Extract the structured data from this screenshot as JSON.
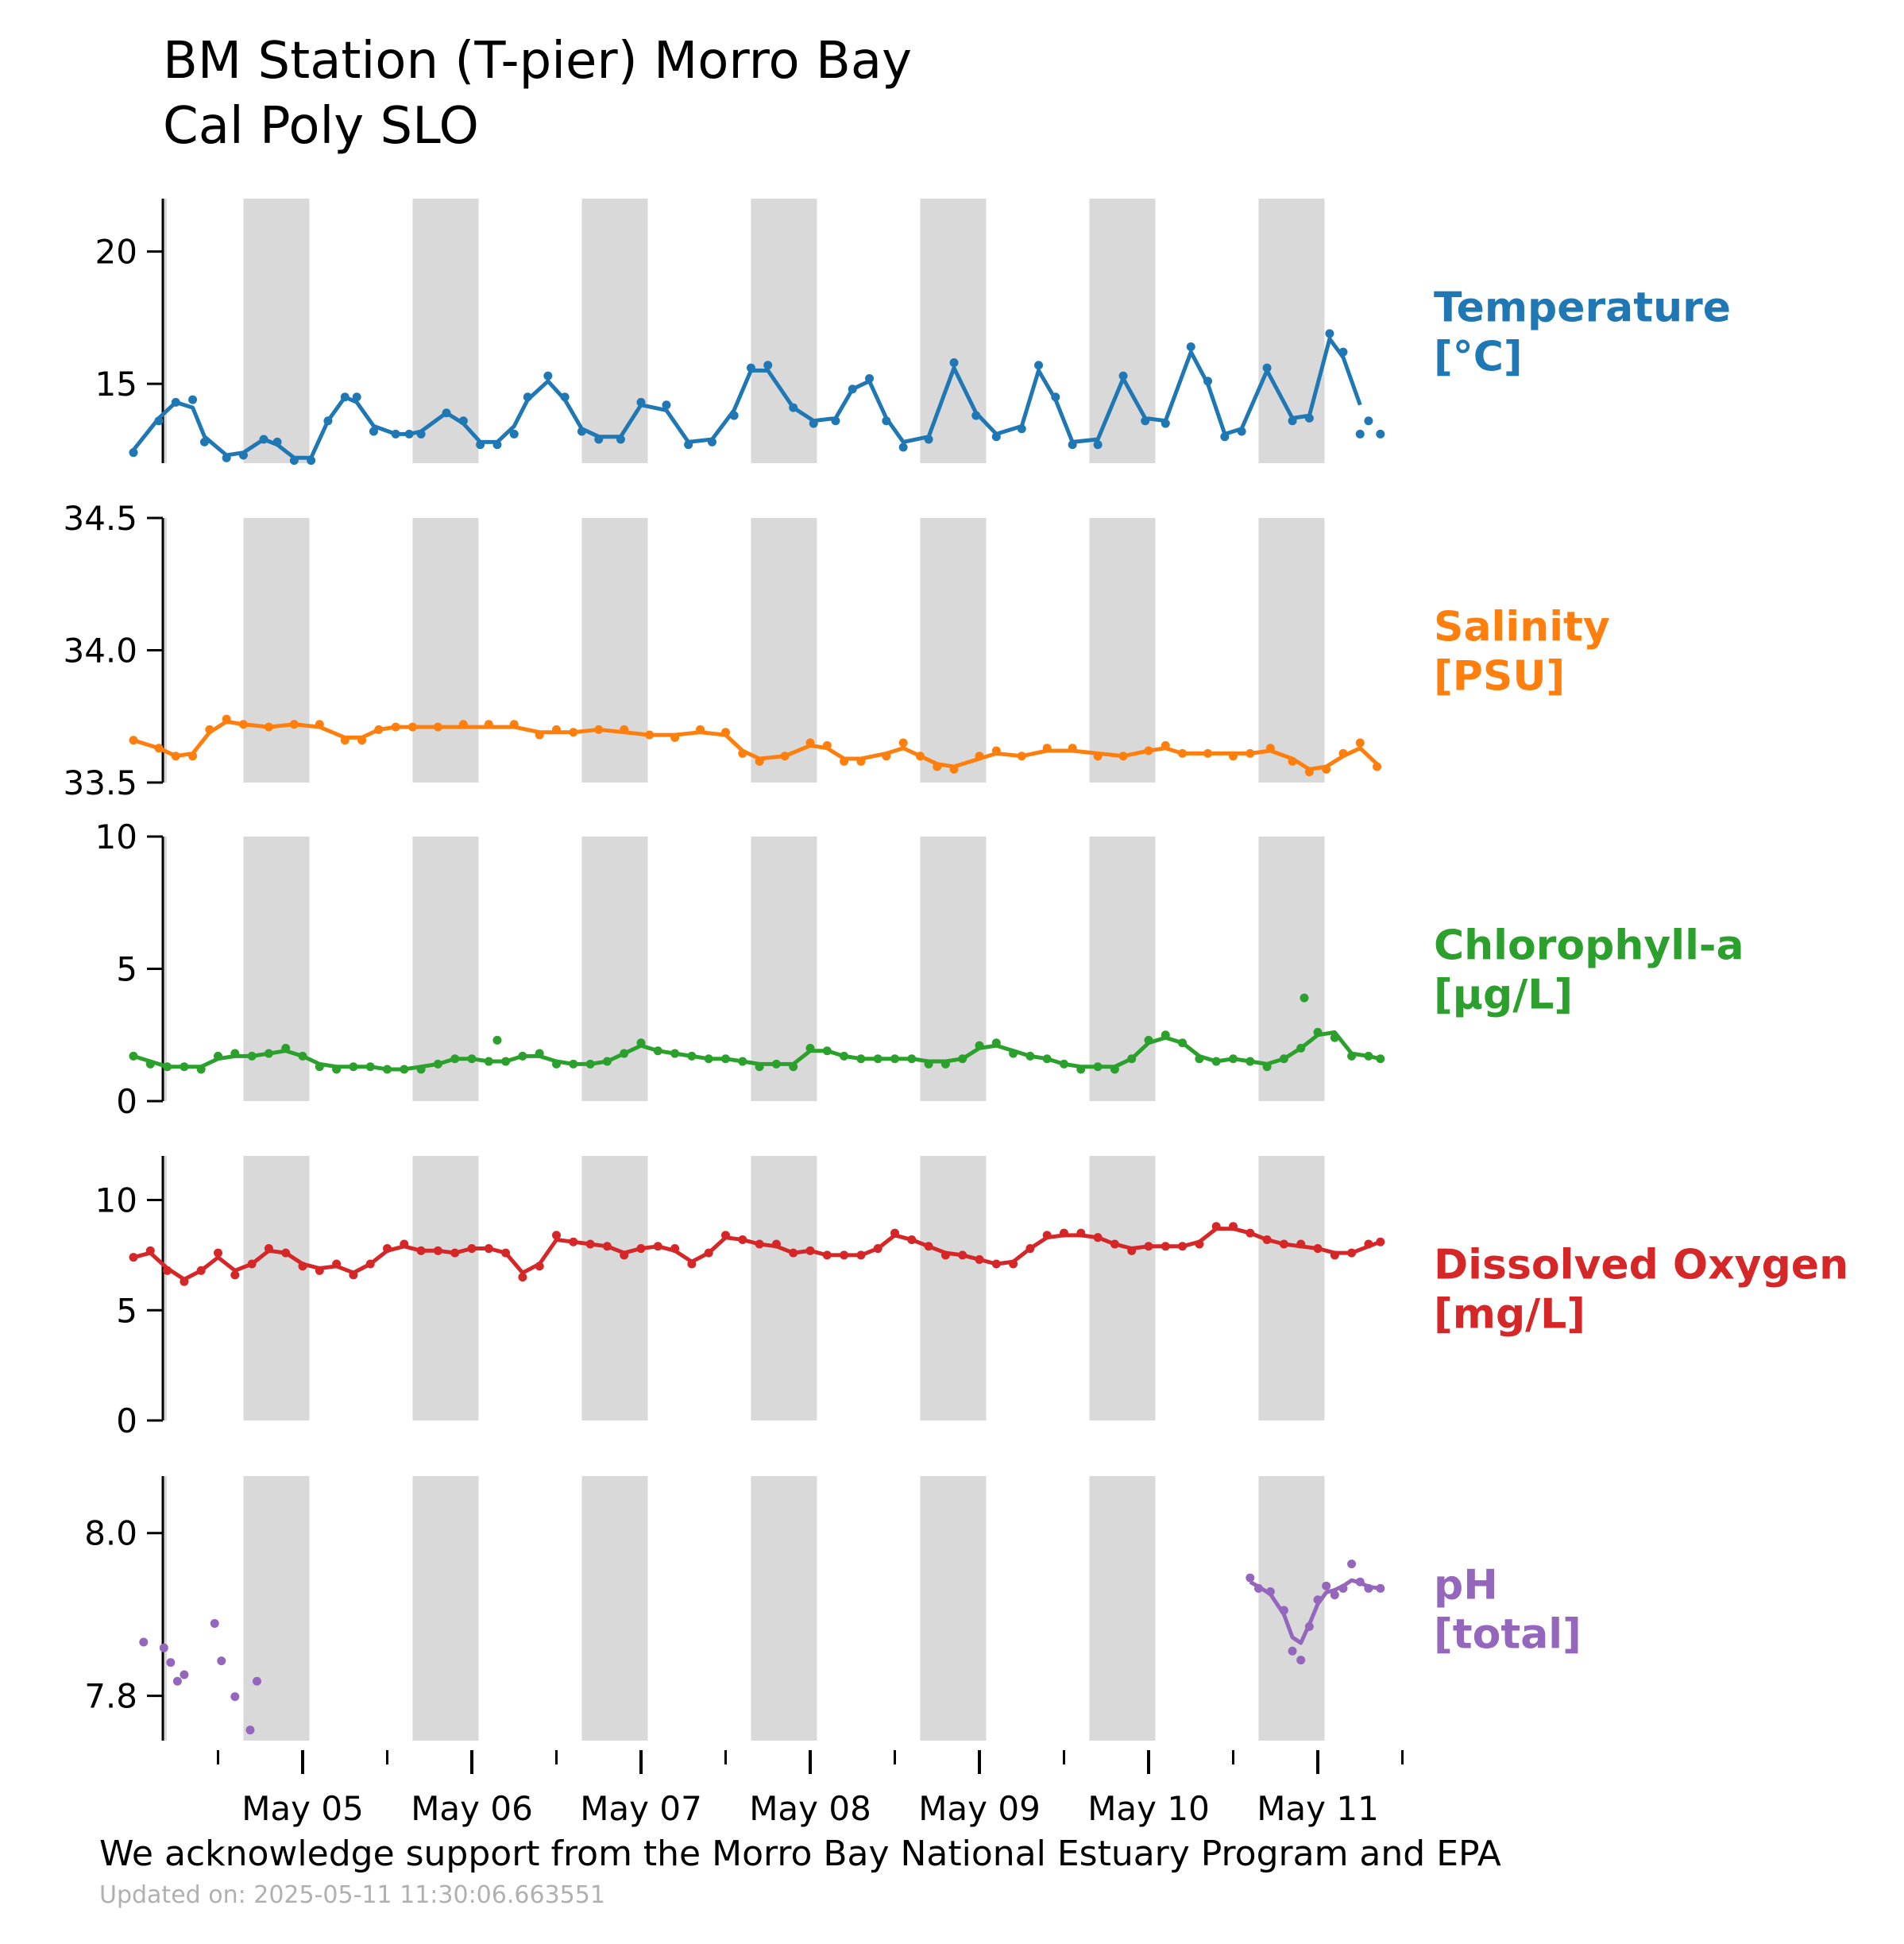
{
  "title": {
    "line1": "BM Station (T-pier) Morro Bay",
    "line2": "Cal Poly SLO"
  },
  "footer": {
    "acknowledgement": "We acknowledge support from the Morro Bay National Estuary Program and EPA",
    "updated": "Updated on: 2025-05-11 11:30:06.663551"
  },
  "chart_data": {
    "type": "line",
    "x_start": "2025-05-04 08:00",
    "x_end": "2025-05-11 17:00",
    "x_tick_labels": [
      "May 05",
      "May 06",
      "May 07",
      "May 08",
      "May 09",
      "May 10",
      "May 11"
    ],
    "x_tick_days": [
      1,
      2,
      3,
      4,
      5,
      6,
      7
    ],
    "x_minor_tick_days": [
      0.5,
      1.5,
      2.5,
      3.5,
      4.5,
      5.5,
      6.5,
      7.5
    ],
    "night_shading": {
      "color": "#d9d9d9",
      "intervals_days": [
        [
          0.65,
          1.04
        ],
        [
          1.65,
          2.04
        ],
        [
          2.65,
          3.04
        ],
        [
          3.65,
          4.04
        ],
        [
          4.65,
          5.04
        ],
        [
          5.65,
          6.04
        ],
        [
          6.65,
          7.04
        ]
      ]
    },
    "panels": [
      {
        "name": "Temperature",
        "label_line1": "Temperature",
        "label_line2": "[°C]",
        "color": "#1f77b4",
        "ylim": [
          12.0,
          22.0
        ],
        "yticks": [
          15,
          20
        ],
        "ytick_labels": [
          "15",
          "20"
        ],
        "x": [
          0.0,
          0.15,
          0.25,
          0.35,
          0.42,
          0.55,
          0.65,
          0.77,
          0.85,
          0.95,
          1.05,
          1.15,
          1.25,
          1.32,
          1.42,
          1.55,
          1.63,
          1.7,
          1.85,
          1.95,
          2.05,
          2.15,
          2.25,
          2.33,
          2.45,
          2.55,
          2.65,
          2.75,
          2.88,
          3.0,
          3.15,
          3.28,
          3.42,
          3.55,
          3.65,
          3.75,
          3.9,
          4.02,
          4.15,
          4.25,
          4.35,
          4.45,
          4.55,
          4.7,
          4.85,
          4.98,
          5.1,
          5.25,
          5.35,
          5.45,
          5.55,
          5.7,
          5.85,
          5.98,
          6.1,
          6.25,
          6.35,
          6.45,
          6.55,
          6.7,
          6.85,
          6.95,
          7.07,
          7.15,
          7.25
        ],
        "y": [
          12.4,
          13.6,
          14.3,
          14.4,
          12.8,
          12.2,
          12.3,
          12.9,
          12.8,
          12.1,
          12.1,
          13.6,
          14.5,
          14.5,
          13.2,
          13.1,
          13.1,
          13.1,
          13.9,
          13.6,
          12.7,
          12.7,
          13.1,
          14.5,
          15.3,
          14.5,
          13.2,
          12.9,
          12.9,
          14.3,
          14.2,
          12.7,
          12.8,
          13.8,
          15.6,
          15.7,
          14.1,
          13.5,
          13.6,
          14.8,
          15.2,
          13.6,
          12.6,
          12.9,
          15.8,
          13.8,
          13.0,
          13.3,
          15.7,
          14.5,
          12.7,
          12.7,
          15.3,
          13.6,
          13.5,
          16.4,
          15.1,
          13.0,
          13.2,
          15.6,
          13.6,
          13.7,
          16.9,
          16.2,
          13.1
        ],
        "y_line": [
          12.5,
          13.7,
          14.3,
          14.1,
          13.0,
          12.3,
          12.4,
          12.9,
          12.7,
          12.2,
          12.2,
          13.6,
          14.5,
          14.3,
          13.4,
          13.1,
          13.1,
          13.2,
          13.9,
          13.5,
          12.8,
          12.8,
          13.4,
          14.4,
          15.1,
          14.4,
          13.3,
          13.0,
          13.0,
          14.2,
          14.0,
          12.8,
          12.9,
          14.0,
          15.5,
          15.5,
          14.1,
          13.6,
          13.7,
          14.8,
          15.1,
          13.7,
          12.8,
          13.0,
          15.6,
          13.9,
          13.1,
          13.4,
          15.5,
          14.4,
          12.8,
          12.9,
          15.2,
          13.7,
          13.6,
          16.2,
          15.0,
          13.1,
          13.3,
          15.5,
          13.7,
          13.8,
          16.7,
          16.0,
          14.2
        ],
        "extra_points": {
          "x": [
            7.3,
            7.37
          ],
          "y": [
            13.6,
            13.1
          ]
        }
      },
      {
        "name": "Salinity",
        "label_line1": "Salinity",
        "label_line2": "[PSU]",
        "color": "#ff7f0e",
        "ylim": [
          33.5,
          34.5
        ],
        "yticks": [
          33.5,
          34.0,
          34.5
        ],
        "ytick_labels": [
          "33.5",
          "34.0",
          "34.5"
        ],
        "x": [
          0.0,
          0.15,
          0.25,
          0.35,
          0.45,
          0.55,
          0.65,
          0.8,
          0.95,
          1.1,
          1.25,
          1.35,
          1.45,
          1.55,
          1.65,
          1.8,
          1.95,
          2.1,
          2.25,
          2.4,
          2.5,
          2.6,
          2.75,
          2.9,
          3.05,
          3.2,
          3.35,
          3.5,
          3.6,
          3.7,
          3.85,
          4.0,
          4.1,
          4.2,
          4.3,
          4.45,
          4.55,
          4.65,
          4.75,
          4.85,
          5.0,
          5.1,
          5.25,
          5.4,
          5.55,
          5.7,
          5.85,
          6.0,
          6.1,
          6.2,
          6.35,
          6.5,
          6.6,
          6.72,
          6.85,
          6.95,
          7.05,
          7.15,
          7.25,
          7.35
        ],
        "y": [
          33.66,
          33.63,
          33.6,
          33.6,
          33.7,
          33.74,
          33.72,
          33.71,
          33.72,
          33.72,
          33.66,
          33.66,
          33.7,
          33.71,
          33.71,
          33.71,
          33.72,
          33.72,
          33.72,
          33.68,
          33.7,
          33.69,
          33.7,
          33.7,
          33.68,
          33.67,
          33.7,
          33.69,
          33.61,
          33.58,
          33.6,
          33.65,
          33.64,
          33.58,
          33.58,
          33.6,
          33.65,
          33.6,
          33.56,
          33.55,
          33.6,
          33.62,
          33.6,
          33.63,
          33.63,
          33.6,
          33.6,
          33.62,
          33.64,
          33.61,
          33.61,
          33.6,
          33.61,
          33.63,
          33.58,
          33.54,
          33.55,
          33.61,
          33.65,
          33.56
        ],
        "y_line": [
          33.66,
          33.63,
          33.6,
          33.61,
          33.69,
          33.73,
          33.72,
          33.71,
          33.72,
          33.71,
          33.67,
          33.67,
          33.7,
          33.71,
          33.71,
          33.71,
          33.71,
          33.71,
          33.71,
          33.69,
          33.69,
          33.69,
          33.7,
          33.69,
          33.68,
          33.68,
          33.69,
          33.68,
          33.62,
          33.59,
          33.6,
          33.64,
          33.63,
          33.59,
          33.59,
          33.61,
          33.63,
          33.6,
          33.57,
          33.56,
          33.59,
          33.61,
          33.6,
          33.62,
          33.62,
          33.61,
          33.6,
          33.62,
          33.63,
          33.61,
          33.61,
          33.61,
          33.61,
          33.62,
          33.59,
          33.55,
          33.56,
          33.6,
          33.63,
          33.57
        ]
      },
      {
        "name": "Chlorophyll-a",
        "label_line1": "Chlorophyll-a",
        "label_line2": "[µg/L]",
        "color": "#2ca02c",
        "ylim": [
          0,
          10
        ],
        "yticks": [
          0,
          5,
          10
        ],
        "ytick_labels": [
          "0",
          "5",
          "10"
        ],
        "x": [
          0.0,
          0.1,
          0.2,
          0.3,
          0.4,
          0.5,
          0.6,
          0.7,
          0.8,
          0.9,
          1.0,
          1.1,
          1.2,
          1.3,
          1.4,
          1.5,
          1.6,
          1.7,
          1.8,
          1.9,
          2.0,
          2.1,
          2.2,
          2.3,
          2.4,
          2.5,
          2.6,
          2.7,
          2.8,
          2.9,
          3.0,
          3.1,
          3.2,
          3.3,
          3.4,
          3.5,
          3.6,
          3.7,
          3.8,
          3.9,
          4.0,
          4.1,
          4.2,
          4.3,
          4.4,
          4.5,
          4.6,
          4.7,
          4.8,
          4.9,
          5.0,
          5.1,
          5.2,
          5.3,
          5.4,
          5.5,
          5.6,
          5.7,
          5.8,
          5.9,
          6.0,
          6.1,
          6.2,
          6.3,
          6.4,
          6.5,
          6.6,
          6.7,
          6.8,
          6.9,
          7.0,
          7.1,
          7.2,
          7.3,
          7.37
        ],
        "y": [
          1.7,
          1.4,
          1.3,
          1.3,
          1.2,
          1.7,
          1.8,
          1.7,
          1.8,
          2.0,
          1.7,
          1.3,
          1.2,
          1.3,
          1.3,
          1.2,
          1.2,
          1.2,
          1.4,
          1.6,
          1.6,
          1.5,
          1.5,
          1.7,
          1.8,
          1.4,
          1.4,
          1.4,
          1.5,
          1.8,
          2.2,
          1.9,
          1.8,
          1.7,
          1.6,
          1.6,
          1.5,
          1.3,
          1.4,
          1.3,
          2.0,
          1.9,
          1.7,
          1.6,
          1.6,
          1.6,
          1.6,
          1.4,
          1.4,
          1.6,
          2.1,
          2.2,
          1.8,
          1.7,
          1.6,
          1.4,
          1.2,
          1.3,
          1.2,
          1.6,
          2.3,
          2.5,
          2.2,
          1.6,
          1.5,
          1.6,
          1.5,
          1.3,
          1.6,
          2.0,
          2.6,
          2.4,
          1.7,
          1.7,
          1.6
        ],
        "y_line": [
          1.7,
          1.5,
          1.3,
          1.3,
          1.3,
          1.6,
          1.7,
          1.7,
          1.8,
          1.9,
          1.7,
          1.4,
          1.3,
          1.3,
          1.3,
          1.2,
          1.2,
          1.3,
          1.4,
          1.6,
          1.6,
          1.5,
          1.5,
          1.7,
          1.7,
          1.5,
          1.4,
          1.4,
          1.5,
          1.8,
          2.1,
          1.9,
          1.8,
          1.7,
          1.6,
          1.6,
          1.5,
          1.4,
          1.4,
          1.4,
          1.9,
          1.9,
          1.7,
          1.6,
          1.6,
          1.6,
          1.6,
          1.5,
          1.5,
          1.6,
          2.0,
          2.1,
          1.9,
          1.7,
          1.6,
          1.4,
          1.3,
          1.3,
          1.3,
          1.6,
          2.2,
          2.4,
          2.2,
          1.7,
          1.5,
          1.6,
          1.5,
          1.4,
          1.6,
          2.0,
          2.5,
          2.6,
          1.8,
          1.7,
          1.6
        ],
        "extra_points": {
          "x": [
            2.15,
            6.92
          ],
          "y": [
            2.3,
            3.9
          ]
        }
      },
      {
        "name": "Dissolved Oxygen",
        "label_line1": "Dissolved Oxygen",
        "label_line2": "[mg/L]",
        "color": "#d62728",
        "ylim": [
          0,
          12
        ],
        "yticks": [
          0,
          5,
          10
        ],
        "ytick_labels": [
          "0",
          "5",
          "10"
        ],
        "x": [
          0.0,
          0.1,
          0.2,
          0.3,
          0.4,
          0.5,
          0.6,
          0.7,
          0.8,
          0.9,
          1.0,
          1.1,
          1.2,
          1.3,
          1.4,
          1.5,
          1.6,
          1.7,
          1.8,
          1.9,
          2.0,
          2.1,
          2.2,
          2.3,
          2.4,
          2.5,
          2.6,
          2.7,
          2.8,
          2.9,
          3.0,
          3.1,
          3.2,
          3.3,
          3.4,
          3.5,
          3.6,
          3.7,
          3.8,
          3.9,
          4.0,
          4.1,
          4.2,
          4.3,
          4.4,
          4.5,
          4.6,
          4.7,
          4.8,
          4.9,
          5.0,
          5.1,
          5.2,
          5.3,
          5.4,
          5.5,
          5.6,
          5.7,
          5.8,
          5.9,
          6.0,
          6.1,
          6.2,
          6.3,
          6.4,
          6.5,
          6.6,
          6.7,
          6.8,
          6.9,
          7.0,
          7.1,
          7.2,
          7.3,
          7.37
        ],
        "y": [
          7.4,
          7.7,
          6.8,
          6.3,
          6.8,
          7.6,
          6.6,
          7.1,
          7.8,
          7.6,
          7.0,
          6.8,
          7.1,
          6.6,
          7.1,
          7.8,
          8.0,
          7.7,
          7.7,
          7.6,
          7.8,
          7.8,
          7.6,
          6.5,
          7.0,
          8.4,
          8.1,
          8.0,
          7.9,
          7.5,
          7.8,
          7.9,
          7.8,
          7.1,
          7.6,
          8.4,
          8.2,
          8.0,
          8.0,
          7.6,
          7.7,
          7.5,
          7.5,
          7.5,
          7.8,
          8.5,
          8.2,
          7.9,
          7.5,
          7.5,
          7.3,
          7.1,
          7.1,
          7.8,
          8.4,
          8.5,
          8.5,
          8.3,
          8.0,
          7.7,
          7.9,
          7.9,
          7.9,
          8.0,
          8.8,
          8.8,
          8.5,
          8.2,
          8.0,
          8.0,
          7.8,
          7.5,
          7.6,
          8.0,
          8.1
        ],
        "y_line": [
          7.4,
          7.6,
          6.9,
          6.4,
          6.8,
          7.4,
          6.8,
          7.1,
          7.7,
          7.6,
          7.1,
          6.9,
          7.0,
          6.7,
          7.1,
          7.7,
          7.9,
          7.7,
          7.7,
          7.6,
          7.8,
          7.8,
          7.6,
          6.7,
          7.1,
          8.2,
          8.1,
          8.0,
          7.9,
          7.6,
          7.8,
          7.9,
          7.7,
          7.2,
          7.6,
          8.3,
          8.2,
          8.0,
          7.9,
          7.6,
          7.7,
          7.5,
          7.5,
          7.5,
          7.8,
          8.4,
          8.2,
          7.9,
          7.6,
          7.5,
          7.3,
          7.1,
          7.2,
          7.8,
          8.3,
          8.4,
          8.4,
          8.3,
          8.0,
          7.8,
          7.9,
          7.9,
          7.9,
          8.1,
          8.7,
          8.7,
          8.5,
          8.2,
          8.0,
          7.9,
          7.8,
          7.6,
          7.6,
          7.9,
          8.1
        ]
      },
      {
        "name": "pH",
        "label_line1": "pH",
        "label_line2": "[total]",
        "color": "#9467bd",
        "ylim": [
          7.745,
          8.07
        ],
        "yticks": [
          7.8,
          8.0
        ],
        "ytick_labels": [
          "7.8",
          "8.0"
        ],
        "scatter_only": {
          "x": [
            0.06,
            0.18,
            0.22,
            0.26,
            0.3,
            0.48,
            0.52,
            0.6,
            0.69,
            0.73
          ],
          "y": [
            7.866,
            7.859,
            7.841,
            7.818,
            7.826,
            7.889,
            7.843,
            7.799,
            7.758,
            7.818
          ]
        },
        "x": [
          6.6,
          6.65,
          6.72,
          6.8,
          6.85,
          6.9,
          6.95,
          7.0,
          7.05,
          7.1,
          7.15,
          7.2,
          7.25,
          7.3,
          7.37
        ],
        "y": [
          7.945,
          7.932,
          7.928,
          7.905,
          7.855,
          7.844,
          7.885,
          7.918,
          7.935,
          7.924,
          7.932,
          7.962,
          7.94,
          7.932,
          7.932
        ],
        "y_line": [
          7.94,
          7.934,
          7.925,
          7.9,
          7.872,
          7.865,
          7.888,
          7.913,
          7.927,
          7.93,
          7.935,
          7.942,
          7.939,
          7.934,
          7.932
        ]
      }
    ]
  }
}
